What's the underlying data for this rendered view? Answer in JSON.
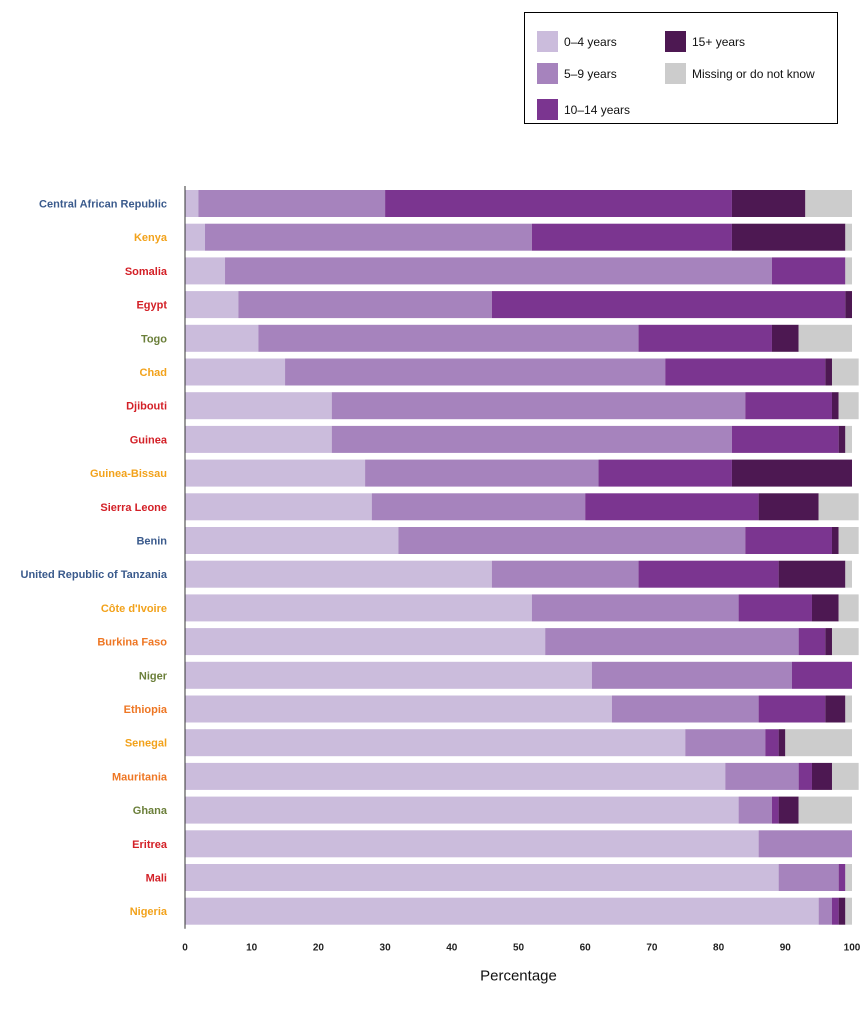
{
  "chart_data": {
    "type": "bar",
    "orientation": "horizontal",
    "stacked": true,
    "title": "",
    "xlabel": "Percentage",
    "ylabel": "",
    "xlim": [
      0,
      100
    ],
    "xticks": [
      "0",
      "10",
      "20",
      "30",
      "40",
      "50",
      "60",
      "70",
      "80",
      "90",
      "100"
    ],
    "grid": false,
    "legend_position": "top-right",
    "categories": [
      "Central African Republic",
      "Kenya",
      "Somalia",
      "Egypt",
      "Togo",
      "Chad",
      "Djibouti",
      "Guinea",
      "Guinea-Bissau",
      "Sierra Leone",
      "Benin",
      "United Republic of Tanzania",
      "Côte d'Ivoire",
      "Burkina Faso",
      "Niger",
      "Ethiopia",
      "Senegal",
      "Mauritania",
      "Ghana",
      "Eritrea",
      "Mali",
      "Nigeria"
    ],
    "category_colors": [
      "#3a5a8c",
      "#f2a21b",
      "#d32027",
      "#d32027",
      "#6b7f3a",
      "#f2a21b",
      "#d32027",
      "#d32027",
      "#f2a21b",
      "#d32027",
      "#3a5a8c",
      "#3a5a8c",
      "#f2a21b",
      "#ee7623",
      "#6b7f3a",
      "#ee7623",
      "#f2a21b",
      "#ee7623",
      "#6b7f3a",
      "#d32027",
      "#d32027",
      "#f2a21b"
    ],
    "series": [
      {
        "name": "0–4 years",
        "color": "#cbbcdc",
        "values": [
          2,
          3,
          6,
          8,
          11,
          15,
          22,
          22,
          27,
          28,
          32,
          46,
          52,
          54,
          61,
          64,
          75,
          81,
          83,
          86,
          89,
          95
        ]
      },
      {
        "name": "5–9 years",
        "color": "#a683bd",
        "values": [
          28,
          49,
          82,
          38,
          57,
          57,
          62,
          60,
          35,
          32,
          52,
          22,
          31,
          38,
          30,
          22,
          12,
          11,
          5,
          14,
          9,
          2
        ]
      },
      {
        "name": "10–14 years",
        "color": "#7b3590",
        "values": [
          52,
          30,
          11,
          53,
          20,
          24,
          13,
          16,
          20,
          26,
          13,
          21,
          11,
          4,
          9,
          10,
          2,
          2,
          1,
          0,
          1,
          1
        ]
      },
      {
        "name": "15+ years",
        "color": "#4d1852",
        "values": [
          11,
          17,
          0,
          1,
          4,
          1,
          1,
          1,
          18,
          9,
          1,
          10,
          4,
          1,
          0,
          3,
          1,
          3,
          3,
          0,
          0,
          1
        ]
      },
      {
        "name": "Missing or do not know",
        "color": "#cccccc",
        "values": [
          7,
          1,
          1,
          0,
          8,
          4,
          3,
          1,
          0,
          6,
          3,
          1,
          3,
          4,
          0,
          1,
          10,
          4,
          8,
          0,
          1,
          1
        ]
      }
    ]
  },
  "legend": {
    "items": [
      {
        "label": "0–4 years",
        "color": "#cbbcdc"
      },
      {
        "label": "5–9 years",
        "color": "#a683bd"
      },
      {
        "label": "10–14 years",
        "color": "#7b3590"
      },
      {
        "label": "15+ years",
        "color": "#4d1852"
      },
      {
        "label": "Missing or do not know",
        "color": "#cccccc"
      }
    ]
  }
}
